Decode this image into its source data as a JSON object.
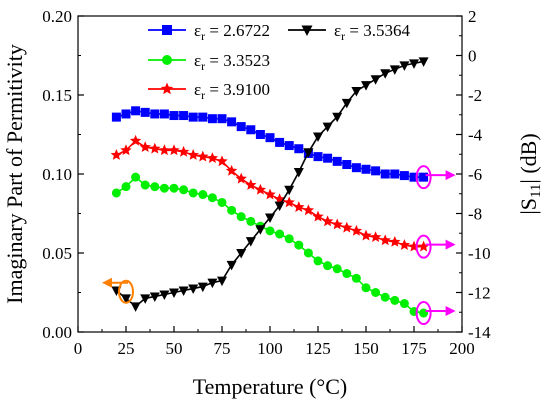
{
  "chart_data": {
    "type": "line",
    "xlabel": "Temperature (°C)",
    "ylabel_left": "Imaginary Part of Permitivity",
    "ylabel_right": "|S11| (dB)",
    "xlim": [
      0,
      200
    ],
    "ylim_left": [
      0.0,
      0.2
    ],
    "ylim_right": [
      -14,
      2
    ],
    "xticks": [
      "0",
      "25",
      "50",
      "75",
      "100",
      "125",
      "150",
      "175",
      "200"
    ],
    "yticks_left": [
      "0.00",
      "0.05",
      "0.10",
      "0.15",
      "0.20"
    ],
    "yticks_right": [
      "2",
      "0",
      "-2",
      "-4",
      "-6",
      "-8",
      "-10",
      "-12",
      "-14"
    ],
    "grid": false,
    "legend_placement": "top-center",
    "series": [
      {
        "name": "εr = 2.6722",
        "axis": "left",
        "color": "#0000ff",
        "marker": "square",
        "x": [
          20,
          25,
          30,
          35,
          40,
          45,
          50,
          55,
          60,
          65,
          70,
          75,
          80,
          85,
          90,
          95,
          100,
          105,
          110,
          115,
          120,
          125,
          130,
          135,
          140,
          145,
          150,
          155,
          160,
          165,
          170,
          175,
          180
        ],
        "y": [
          0.136,
          0.138,
          0.14,
          0.139,
          0.138,
          0.138,
          0.137,
          0.137,
          0.136,
          0.136,
          0.135,
          0.135,
          0.133,
          0.13,
          0.128,
          0.125,
          0.123,
          0.12,
          0.118,
          0.116,
          0.113,
          0.111,
          0.11,
          0.108,
          0.106,
          0.104,
          0.103,
          0.102,
          0.1,
          0.1,
          0.099,
          0.098,
          0.098
        ]
      },
      {
        "name": "εr = 3.3523",
        "axis": "left",
        "color": "#00ee00",
        "marker": "circle",
        "x": [
          20,
          25,
          30,
          35,
          40,
          45,
          50,
          55,
          60,
          65,
          70,
          75,
          80,
          85,
          90,
          95,
          100,
          105,
          110,
          115,
          120,
          125,
          130,
          135,
          140,
          145,
          150,
          155,
          160,
          165,
          170,
          175,
          180
        ],
        "y": [
          0.088,
          0.092,
          0.098,
          0.093,
          0.092,
          0.091,
          0.091,
          0.09,
          0.088,
          0.087,
          0.085,
          0.082,
          0.077,
          0.073,
          0.07,
          0.067,
          0.064,
          0.062,
          0.059,
          0.055,
          0.05,
          0.045,
          0.042,
          0.04,
          0.037,
          0.034,
          0.028,
          0.025,
          0.022,
          0.02,
          0.018,
          0.013,
          0.012
        ]
      },
      {
        "name": "εr = 3.9100",
        "axis": "left",
        "color": "#ff0000",
        "marker": "star",
        "x": [
          20,
          25,
          30,
          35,
          40,
          45,
          50,
          55,
          60,
          65,
          70,
          75,
          80,
          85,
          90,
          95,
          100,
          105,
          110,
          115,
          120,
          125,
          130,
          135,
          140,
          145,
          150,
          155,
          160,
          165,
          170,
          175,
          180
        ],
        "y": [
          0.112,
          0.115,
          0.121,
          0.117,
          0.116,
          0.115,
          0.115,
          0.114,
          0.112,
          0.111,
          0.11,
          0.108,
          0.102,
          0.097,
          0.093,
          0.09,
          0.087,
          0.084,
          0.082,
          0.079,
          0.077,
          0.073,
          0.07,
          0.068,
          0.066,
          0.064,
          0.061,
          0.06,
          0.058,
          0.057,
          0.055,
          0.054,
          0.054
        ]
      },
      {
        "name": "εr = 3.5364",
        "axis": "right",
        "color": "#000000",
        "marker": "triangle-down",
        "x": [
          20,
          25,
          30,
          35,
          40,
          45,
          50,
          55,
          60,
          65,
          70,
          75,
          80,
          85,
          90,
          95,
          100,
          105,
          110,
          115,
          120,
          125,
          130,
          135,
          140,
          145,
          150,
          155,
          160,
          165,
          170,
          175,
          180
        ],
        "y": [
          -11.9,
          -12.3,
          -12.7,
          -12.3,
          -12.2,
          -12.1,
          -12.0,
          -11.9,
          -11.8,
          -11.7,
          -11.5,
          -11.4,
          -10.6,
          -10.0,
          -9.4,
          -8.8,
          -8.2,
          -7.6,
          -6.8,
          -5.9,
          -4.9,
          -4.1,
          -3.6,
          -3.1,
          -2.4,
          -1.8,
          -1.5,
          -1.2,
          -0.9,
          -0.7,
          -0.5,
          -0.4,
          -0.3
        ]
      }
    ],
    "annotations": [
      {
        "type": "ellipse-arrow",
        "at_x": 25,
        "at_y_left": 0.0255,
        "direction": "left",
        "color": "#ff8000"
      },
      {
        "type": "ellipse-arrow",
        "at_x": 180,
        "at_y_left": 0.098,
        "direction": "right",
        "color": "#ff00ff"
      },
      {
        "type": "ellipse-arrow",
        "at_x": 180,
        "at_y_left": 0.054,
        "direction": "right",
        "color": "#ff00ff"
      },
      {
        "type": "ellipse-arrow",
        "at_x": 180,
        "at_y_left": 0.012,
        "direction": "right",
        "color": "#ff00ff"
      }
    ]
  }
}
